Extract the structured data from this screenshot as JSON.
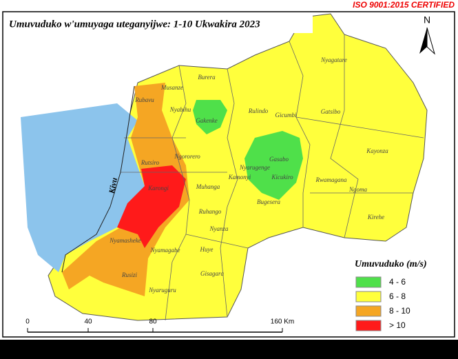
{
  "header": {
    "title": "Umuvuduko w'umuyaga uteganyijwe: 1-10 Ukwakira 2023",
    "certification": "ISO 9001:2015 CERTIFIED"
  },
  "north_arrow": "N",
  "lake": "Kivu",
  "districts": [
    "Nyagatare",
    "Burera",
    "Musanze",
    "Gicumbi",
    "Gatsibo",
    "Nyabihu",
    "Gakenke",
    "Rubavu",
    "Rulindo",
    "Kayonza",
    "Gasabo",
    "Ngororero",
    "Rwamagana",
    "Rutsiro",
    "Nyarugenge",
    "Kicukiro",
    "Muhanga",
    "Kamonyi",
    "Karongi",
    "Ruhango",
    "Bugesera",
    "Ngoma",
    "Kirehe",
    "Nyamasheke",
    "Nyamagabe",
    "Nyanza",
    "Rusizi",
    "Huye",
    "Gisagara",
    "Nyaruguru"
  ],
  "legend": {
    "title": "Umuvuduko (m/s)",
    "items": [
      {
        "label": "4 - 6",
        "color": "#4fe04a"
      },
      {
        "label": "6 - 8",
        "color": "#ffff3c"
      },
      {
        "label": "8 - 10",
        "color": "#f5a623"
      },
      {
        "label": "> 10",
        "color": "#ff1a1a"
      }
    ]
  },
  "scale_bar": [
    "0",
    "40",
    "80",
    "160 Km"
  ]
}
